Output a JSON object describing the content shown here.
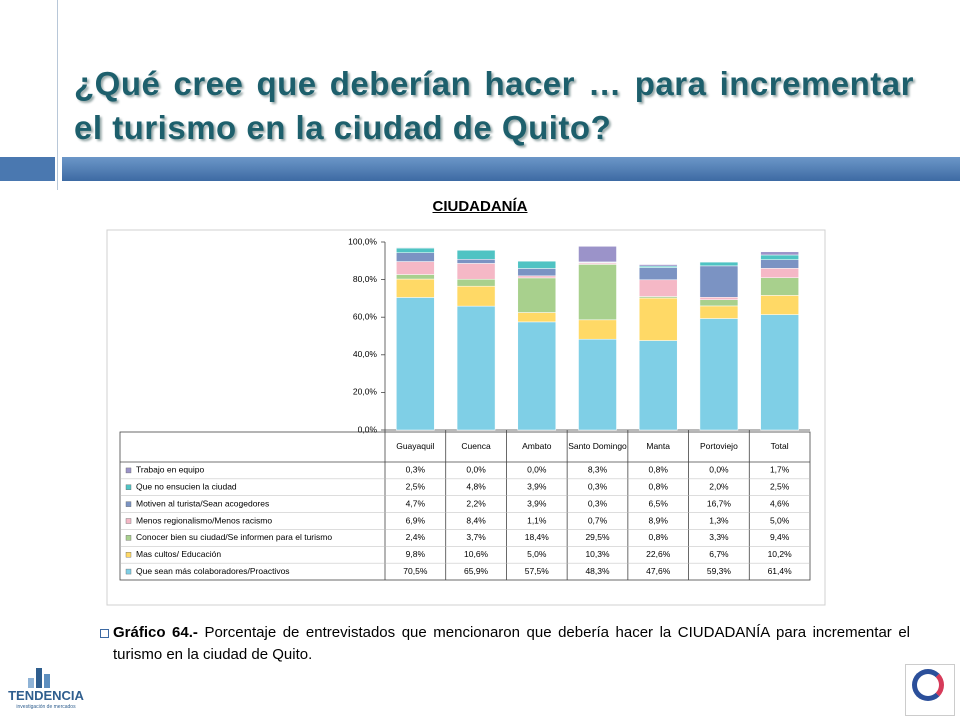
{
  "header": {
    "title": "¿Qué cree que deberían hacer … para incrementar el turismo en la ciudad de Quito?",
    "subtitle": "CIUDADANÍA"
  },
  "chart_data": {
    "type": "stacked_bar",
    "categories": [
      "Guayaquil",
      "Cuenca",
      "Ambato",
      "Santo Domingo",
      "Manta",
      "Portoviejo",
      "Total"
    ],
    "series": [
      {
        "name": "Trabajo en equipo",
        "color": "#9b93c9",
        "values": [
          0.3,
          0,
          0,
          8.3,
          0.8,
          0,
          1.7
        ],
        "value_labels": [
          "0,3%",
          "0,0%",
          "0,0%",
          "8,3%",
          "0,8%",
          "0,0%",
          "1,7%"
        ]
      },
      {
        "name": "Que no ensucien la ciudad",
        "color": "#4fc3c3",
        "values": [
          2.5,
          4.8,
          3.9,
          0.3,
          0.8,
          2,
          2.5
        ],
        "value_labels": [
          "2,5%",
          "4,8%",
          "3,9%",
          "0,3%",
          "0,8%",
          "2,0%",
          "2,5%"
        ]
      },
      {
        "name": "Motiven al turista/Sean acogedores",
        "color": "#7b93c3",
        "values": [
          4.7,
          2.2,
          3.9,
          0.3,
          6.5,
          16.7,
          4.6
        ],
        "value_labels": [
          "4,7%",
          "2,2%",
          "3,9%",
          "0,3%",
          "6,5%",
          "16,7%",
          "4,6%"
        ]
      },
      {
        "name": "Menos regionalismo/Menos racismo",
        "color": "#f5b8c6",
        "values": [
          6.9,
          8.4,
          1.1,
          0.7,
          8.9,
          1.3,
          5
        ],
        "value_labels": [
          "6,9%",
          "8,4%",
          "1,1%",
          "0,7%",
          "8,9%",
          "1,3%",
          "5,0%"
        ]
      },
      {
        "name": "Conocer bien su ciudad/Se informen para el turismo",
        "color": "#a8d08d",
        "values": [
          2.4,
          3.7,
          18.4,
          29.5,
          0.8,
          3.3,
          9.4
        ],
        "value_labels": [
          "2,4%",
          "3,7%",
          "18,4%",
          "29,5%",
          "0,8%",
          "3,3%",
          "9,4%"
        ]
      },
      {
        "name": "Mas cultos/ Educación",
        "color": "#ffd966",
        "values": [
          9.8,
          10.6,
          5,
          10.3,
          22.6,
          6.7,
          10.2
        ],
        "value_labels": [
          "9,8%",
          "10,6%",
          "5,0%",
          "10,3%",
          "22,6%",
          "6,7%",
          "10,2%"
        ]
      },
      {
        "name": "Que sean más colaboradores/Proactivos",
        "color": "#7fcfe6",
        "values": [
          70.5,
          65.9,
          57.5,
          48.3,
          47.6,
          59.3,
          61.4
        ],
        "value_labels": [
          "70,5%",
          "65,9%",
          "57,5%",
          "48,3%",
          "47,6%",
          "59,3%",
          "61,4%"
        ]
      }
    ],
    "ylim": [
      0,
      100
    ],
    "yticks": [
      {
        "value": 0,
        "label": "0,0%"
      },
      {
        "value": 20,
        "label": "20,0%"
      },
      {
        "value": 40,
        "label": "40,0%"
      },
      {
        "value": 60,
        "label": "60,0%"
      },
      {
        "value": 80,
        "label": "80,0%"
      },
      {
        "value": 100,
        "label": "100,0%"
      }
    ],
    "grid": false
  },
  "caption": {
    "label": "Gráfico 64.-",
    "text": "Porcentaje de entrevistados que mencionaron que debería hacer la CIUDADANÍA para incrementar el turismo en la ciudad de Quito."
  },
  "logo": {
    "name": "TENDENCIA",
    "tagline": "investigación de mercados"
  }
}
